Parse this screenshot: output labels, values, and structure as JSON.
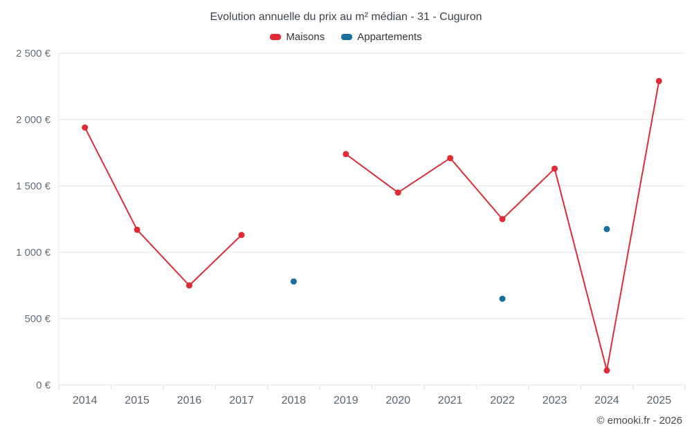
{
  "chart_data": {
    "type": "line",
    "title": "Evolution annuelle du prix au m² médian - 31 - Cuguron",
    "categories": [
      "2014",
      "2015",
      "2016",
      "2017",
      "2018",
      "2019",
      "2020",
      "2021",
      "2022",
      "2023",
      "2024",
      "2025"
    ],
    "series": [
      {
        "name": "Maisons",
        "color": "#e02b35",
        "values": [
          1940,
          1170,
          750,
          1130,
          null,
          1740,
          1450,
          1710,
          1250,
          1630,
          110,
          2290
        ]
      },
      {
        "name": "Appartements",
        "color": "#1a6f9e",
        "values": [
          null,
          null,
          null,
          null,
          780,
          null,
          null,
          null,
          650,
          null,
          1175,
          null
        ]
      }
    ],
    "xlabel": "",
    "ylabel": "",
    "ylim": [
      0,
      2500
    ],
    "yticks": {
      "values": [
        0,
        500,
        1000,
        1500,
        2000,
        2500
      ],
      "labels": [
        "0 €",
        "500 €",
        "1 000 €",
        "1 500 €",
        "2 000 €",
        "2 500 €"
      ]
    },
    "grid": "horizontal",
    "legend_position": "top"
  },
  "footer": {
    "copyright": "© emooki.fr - 2026"
  }
}
